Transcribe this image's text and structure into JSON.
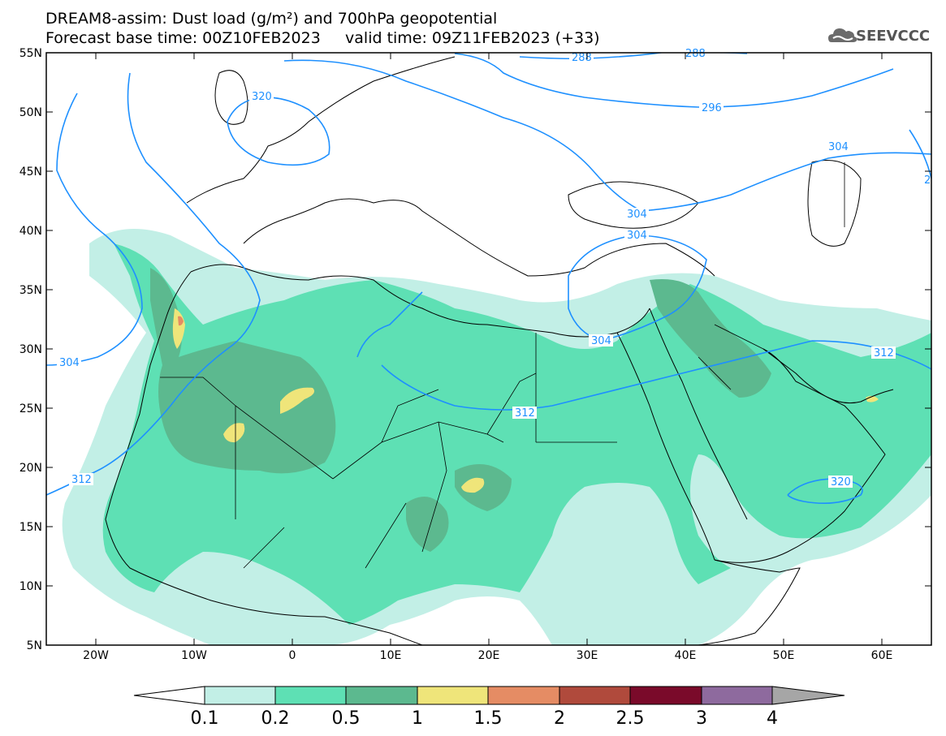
{
  "header": {
    "title_line1": "DREAM8-assim: Dust load (g/m²) and 700hPa geopotential",
    "title_line2": "Forecast base time: 00Z10FEB2023     valid time: 09Z11FEB2023 (+33)",
    "logo_text": "SEEVCCC"
  },
  "map": {
    "lon_ticks": [
      "20W",
      "10W",
      "0",
      "10E",
      "20E",
      "30E",
      "40E",
      "50E",
      "60E"
    ],
    "lat_ticks": [
      "55N",
      "50N",
      "45N",
      "40N",
      "35N",
      "30N",
      "25N",
      "20N",
      "15N",
      "10N",
      "5N"
    ],
    "extent": {
      "lon": [
        -25,
        65
      ],
      "lat": [
        5,
        55
      ]
    },
    "geopotential_labels": [
      "320",
      "288",
      "288",
      "296",
      "304",
      "304",
      "304",
      "304",
      "304",
      "312",
      "312",
      "312",
      "320",
      "2"
    ],
    "colors": {
      "contour": "#1e90ff",
      "coast": "#000000"
    }
  },
  "colorbar": {
    "labels": [
      "0.1",
      "0.2",
      "0.5",
      "1",
      "1.5",
      "2",
      "2.5",
      "3",
      "4"
    ],
    "colors": [
      "#c2efe6",
      "#5ee0b4",
      "#5cb98f",
      "#efe57a",
      "#e58c64",
      "#b04a3c",
      "#7a0a2a",
      "#8e6a9e",
      "#a6a6a6"
    ]
  }
}
